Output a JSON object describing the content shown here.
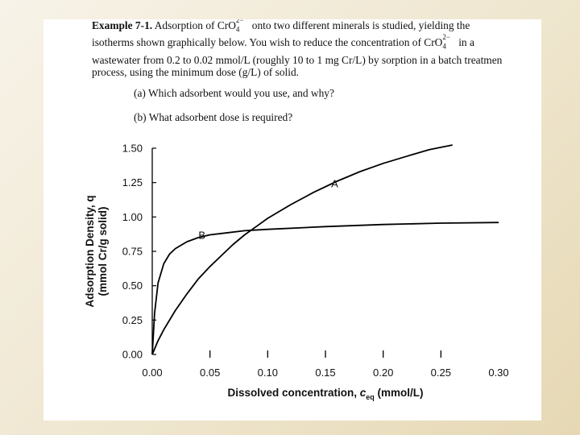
{
  "problem": {
    "example_label": "Example 7-1.",
    "line1_a": " Adsorption of CrO",
    "line1_sub": "4",
    "line1_sup": "2−",
    "line1_b": " onto two different minerals is studied, yielding the",
    "line2_a": "isotherms shown graphically below. You wish to reduce the concentration of CrO",
    "line2_sub": "4",
    "line2_sup": "2−",
    "line2_b": " in a",
    "line3": "wastewater from 0.2 to 0.02 mmol/L (roughly 10 to 1 mg Cr/L) by sorption in a batch treatmen",
    "line4": "process, using the minimum dose (g/L) of solid.",
    "question_a": "(a) Which adsorbent would you use, and why?",
    "question_b": "(b) What adsorbent dose is required?"
  },
  "chart_data": {
    "type": "line",
    "title": "",
    "xlabel_main": "Dissolved concentration, ",
    "xlabel_var": "c",
    "xlabel_sub": "eq",
    "xlabel_unit": " (mmol/L)",
    "ylabel_line1": "Adsorption Density, q",
    "ylabel_line2": "(mmol Cr/g solid)",
    "xlim": [
      0,
      0.3
    ],
    "ylim": [
      0,
      1.5
    ],
    "x_ticks": [
      0.0,
      0.05,
      0.1,
      0.15,
      0.2,
      0.25,
      0.3
    ],
    "x_tick_labels": [
      "0.00",
      "0.05",
      "0.10",
      "0.15",
      "0.20",
      "0.25",
      "0.30"
    ],
    "y_ticks": [
      0.0,
      0.25,
      0.5,
      0.75,
      1.0,
      1.25,
      1.5
    ],
    "y_tick_labels": [
      "0.00",
      "0.25",
      "0.50",
      "0.75",
      "1.00",
      "1.25",
      "1.50"
    ],
    "series": [
      {
        "name": "A",
        "x": [
          0,
          0.005,
          0.01,
          0.02,
          0.03,
          0.04,
          0.05,
          0.06,
          0.07,
          0.08,
          0.09,
          0.1,
          0.12,
          0.14,
          0.16,
          0.18,
          0.2,
          0.22,
          0.24,
          0.26
        ],
        "y": [
          0,
          0.1,
          0.18,
          0.32,
          0.44,
          0.55,
          0.64,
          0.72,
          0.8,
          0.87,
          0.93,
          0.99,
          1.09,
          1.18,
          1.26,
          1.33,
          1.39,
          1.44,
          1.49,
          1.53
        ]
      },
      {
        "name": "B",
        "x": [
          0,
          0.002,
          0.005,
          0.01,
          0.015,
          0.02,
          0.03,
          0.04,
          0.05,
          0.06,
          0.08,
          0.1,
          0.15,
          0.2,
          0.25,
          0.3
        ],
        "y": [
          0,
          0.3,
          0.52,
          0.66,
          0.73,
          0.77,
          0.82,
          0.85,
          0.87,
          0.88,
          0.9,
          0.91,
          0.93,
          0.945,
          0.955,
          0.96
        ]
      }
    ]
  }
}
